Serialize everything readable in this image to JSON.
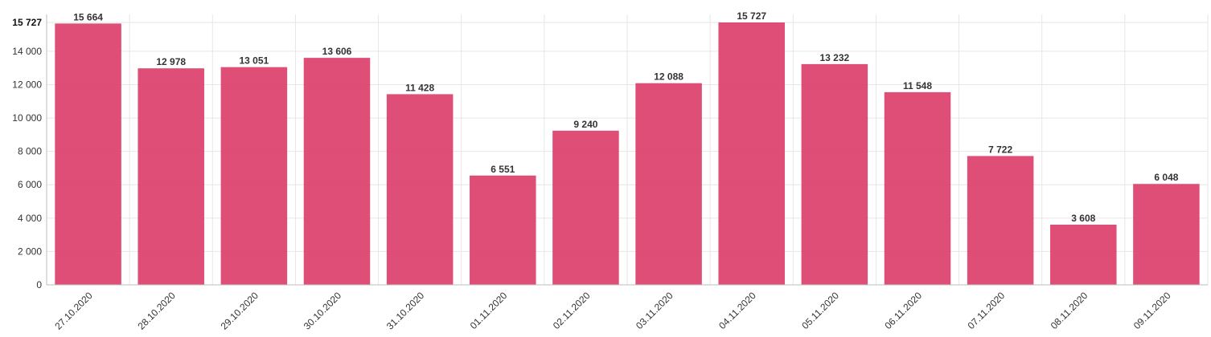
{
  "chart_data": {
    "type": "bar",
    "categories": [
      "27.10.2020",
      "28.10.2020",
      "29.10.2020",
      "30.10.2020",
      "31.10.2020",
      "01.11.2020",
      "02.11.2020",
      "03.11.2020",
      "04.11.2020",
      "05.11.2020",
      "06.11.2020",
      "07.11.2020",
      "08.11.2020",
      "09.11.2020"
    ],
    "values": [
      15664,
      12978,
      13051,
      13606,
      11428,
      6551,
      9240,
      12088,
      15727,
      13232,
      11548,
      7722,
      3608,
      6048
    ],
    "value_labels": [
      "15 664",
      "12 978",
      "13 051",
      "13 606",
      "11 428",
      "6 551",
      "9 240",
      "12 088",
      "15 727",
      "13 232",
      "11 548",
      "7 722",
      "3 608",
      "6 048"
    ],
    "y_ticks": [
      0,
      2000,
      4000,
      6000,
      8000,
      10000,
      12000,
      14000
    ],
    "y_tick_labels": [
      "0",
      "2 000",
      "4 000",
      "6 000",
      "8 000",
      "10 000",
      "12 000",
      "14 000"
    ],
    "y_max_label": "15 727",
    "ylim": [
      0,
      15727
    ],
    "title": "",
    "xlabel": "",
    "ylabel": "",
    "grid": true,
    "legend": "none",
    "bar_color": "#dc3f6a"
  }
}
